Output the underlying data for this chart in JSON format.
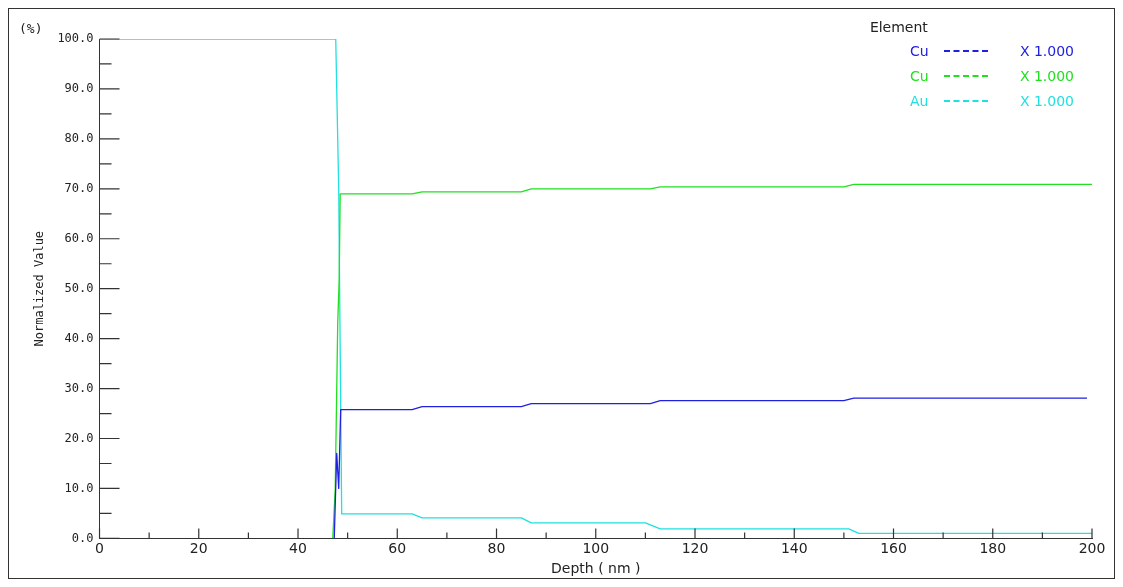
{
  "chart_data": {
    "type": "line",
    "xlabel": "Depth ( nm )",
    "ylabel": "Normalized Value",
    "legend_title": "Element",
    "legend": "top right",
    "grid": false,
    "marker": "none",
    "annotations": [
      "(%)",
      "X 1.000",
      "X 1.000",
      "X 1.000"
    ],
    "xlim": [
      0,
      200
    ],
    "ylim": [
      0,
      100
    ],
    "xticks": [
      0,
      {
        "value": 10,
        "label": null
      },
      20,
      {
        "value": 30,
        "label": null
      },
      40,
      {
        "value": 50,
        "label": null
      },
      60,
      {
        "value": 70,
        "label": null
      },
      80,
      {
        "value": 90,
        "label": null
      },
      100,
      {
        "value": 110,
        "label": null
      },
      120,
      {
        "value": 130,
        "label": null
      },
      140,
      {
        "value": 150,
        "label": null
      },
      160,
      {
        "value": 170,
        "label": null
      },
      180,
      {
        "value": 190,
        "label": null
      },
      200
    ],
    "yticks": [
      {
        "value": 0,
        "label": "0.0"
      },
      {
        "value": 5,
        "label": null
      },
      {
        "value": 10,
        "label": "10.0"
      },
      {
        "value": 15,
        "label": null
      },
      {
        "value": 20,
        "label": "20.0"
      },
      {
        "value": 25,
        "label": null
      },
      {
        "value": 30,
        "label": "30.0"
      },
      {
        "value": 35,
        "label": null
      },
      {
        "value": 40,
        "label": "40.0"
      },
      {
        "value": 45,
        "label": null
      },
      {
        "value": 50,
        "label": "50.0"
      },
      {
        "value": 55,
        "label": null
      },
      {
        "value": 60,
        "label": "60.0"
      },
      {
        "value": 65,
        "label": null
      },
      {
        "value": 70,
        "label": "70.0"
      },
      {
        "value": 75,
        "label": null
      },
      {
        "value": 80,
        "label": "80.0"
      },
      {
        "value": 85,
        "label": null
      },
      {
        "value": 90,
        "label": "90.0"
      },
      {
        "value": 95,
        "label": null
      },
      {
        "value": 100,
        "label": "100.0"
      }
    ],
    "series": [
      {
        "name": "Cu",
        "color": "#2020e0",
        "x": [
          47.3,
          47.8,
          48.2,
          48.6,
          63,
          65,
          85,
          87,
          111,
          113,
          150,
          152,
          199
        ],
        "values": [
          0,
          17,
          10,
          25.8,
          25.8,
          26.4,
          26.4,
          27.0,
          27.0,
          27.6,
          27.6,
          28.1,
          28.1
        ]
      },
      {
        "name": "Cu",
        "color": "#20e020",
        "x": [
          47,
          47.5,
          48,
          48.3,
          48.5,
          63,
          65,
          85,
          87,
          111,
          113,
          150,
          152,
          200
        ],
        "values": [
          0,
          10,
          43,
          52,
          69.0,
          69.0,
          69.4,
          69.4,
          70.0,
          70.0,
          70.4,
          70.4,
          70.9,
          70.9
        ]
      },
      {
        "name": "Au",
        "color": "#20e0e0",
        "x": [
          0,
          47.6,
          48.2,
          48.8,
          63,
          65,
          85,
          87,
          110,
          113,
          151,
          153,
          200
        ],
        "values": [
          100,
          100,
          70,
          4.9,
          4.9,
          4.1,
          4.1,
          3.1,
          3.1,
          1.9,
          1.9,
          1.0,
          1.0
        ]
      }
    ]
  }
}
